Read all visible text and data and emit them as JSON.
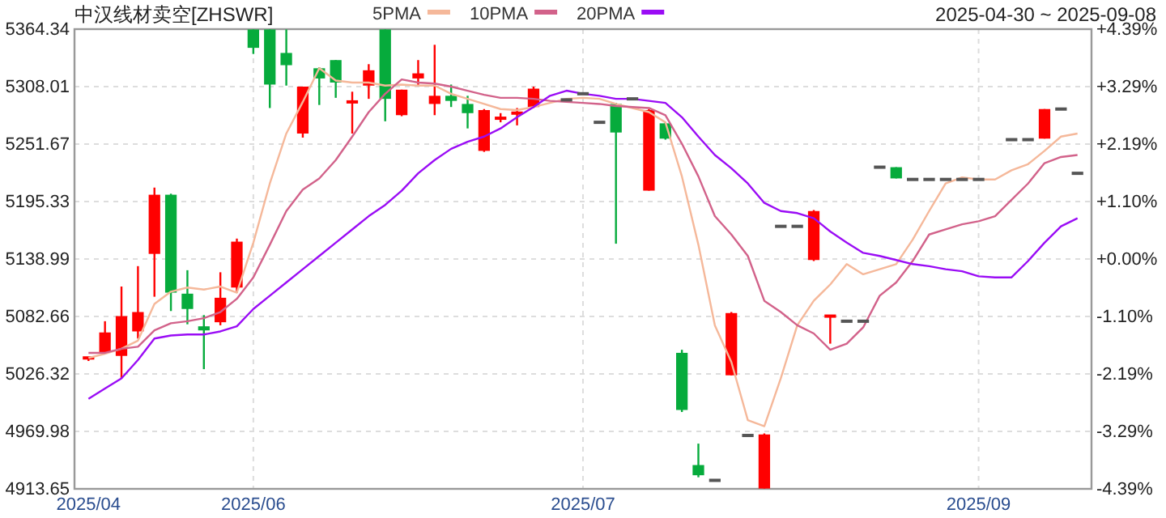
{
  "chart_data": {
    "type": "candlestick",
    "title": "中汉线材卖空[ZHSWR]",
    "subtitle": "2025-04-30 ~ 2025-09-08",
    "categories": [
      "2025/04",
      null,
      null,
      null,
      null,
      null,
      null,
      null,
      null,
      null,
      "2025/06",
      null,
      null,
      null,
      null,
      null,
      null,
      null,
      null,
      null,
      null,
      null,
      null,
      null,
      null,
      null,
      null,
      null,
      null,
      null,
      "2025/07",
      null,
      null,
      null,
      null,
      null,
      null,
      null,
      null,
      null,
      null,
      null,
      null,
      null,
      null,
      null,
      null,
      null,
      null,
      null,
      null,
      null,
      null,
      null,
      "2025/09",
      null,
      null,
      null,
      null,
      null,
      null
    ],
    "ohlc": [
      [
        5039,
        5042,
        5039,
        5042
      ],
      [
        5047,
        5078,
        5047,
        5067
      ],
      [
        5044,
        5112,
        5022,
        5083
      ],
      [
        5068,
        5132,
        5061,
        5087
      ],
      [
        5144,
        5209,
        5102,
        5202
      ],
      [
        5202,
        5203,
        5088,
        5106
      ],
      [
        5105,
        5128,
        5075,
        5090
      ],
      [
        5073,
        5084,
        5031,
        5069
      ],
      [
        5077,
        5126,
        5074,
        5101
      ],
      [
        5111,
        5159,
        5106,
        5156
      ],
      [
        5364,
        5364,
        5340,
        5346
      ],
      [
        5364,
        5364,
        5287,
        5310
      ],
      [
        5341,
        5364,
        5309,
        5329
      ],
      [
        5262,
        5308,
        5258,
        5308
      ],
      [
        5326,
        5327,
        5290,
        5316
      ],
      [
        5334,
        5334,
        5297,
        5312
      ],
      [
        5290,
        5303,
        5262,
        5293
      ],
      [
        5309,
        5330,
        5296,
        5324
      ],
      [
        5364,
        5364,
        5274,
        5296
      ],
      [
        5280,
        5305,
        5279,
        5305
      ],
      [
        5316,
        5334,
        5309,
        5321
      ],
      [
        5291,
        5349,
        5280,
        5299
      ],
      [
        5299,
        5310,
        5288,
        5294
      ],
      [
        5291,
        5299,
        5267,
        5282
      ],
      [
        5245,
        5286,
        5244,
        5285
      ],
      [
        5274,
        5282,
        5273,
        5277
      ],
      [
        5280,
        5287,
        5270,
        5282
      ],
      [
        5288,
        5308,
        5287,
        5306
      ],
      null,
      [
        5295,
        5295,
        5295,
        5295
      ],
      [
        5301,
        5301,
        5301,
        5301
      ],
      [
        5273,
        5273,
        5273,
        5273
      ],
      [
        5291,
        5292,
        5154,
        5263
      ],
      [
        5296,
        5296,
        5296,
        5296
      ],
      [
        5206,
        5286,
        5206,
        5285
      ],
      [
        5272,
        5273,
        5256,
        5257
      ],
      [
        5047,
        5050,
        4989,
        4991
      ],
      [
        4937,
        4958,
        4925,
        4927
      ],
      [
        4922,
        4922,
        4922,
        4922
      ],
      [
        5025,
        5087,
        5025,
        5086
      ],
      [
        4966,
        4966,
        4966,
        4966
      ],
      [
        4914,
        4968,
        4914,
        4967
      ],
      [
        5171,
        5171,
        5171,
        5171
      ],
      [
        5171,
        5171,
        5171,
        5171
      ],
      [
        5138,
        5187,
        5137,
        5186
      ],
      [
        5082,
        5083,
        5056,
        5083
      ],
      [
        5078,
        5078,
        5078,
        5078
      ],
      [
        5078,
        5078,
        5078,
        5078
      ],
      [
        5229,
        5229,
        5229,
        5229
      ],
      [
        5229,
        5229,
        5218,
        5218
      ],
      [
        5217,
        5217,
        5217,
        5217
      ],
      [
        5217,
        5217,
        5217,
        5217
      ],
      [
        5217,
        5217,
        5217,
        5217
      ],
      [
        5217,
        5217,
        5217,
        5217
      ],
      [
        5217,
        5217,
        5217,
        5217
      ],
      null,
      [
        5256,
        5256,
        5256,
        5256
      ],
      [
        5256,
        5256,
        5256,
        5256
      ],
      [
        5257,
        5286,
        5257,
        5286
      ],
      [
        5286,
        5286,
        5286,
        5286
      ],
      [
        5223,
        5223,
        5223,
        5223
      ]
    ],
    "series": [
      {
        "type": "line",
        "name": "5PMA",
        "color": "#f5b89a",
        "values": [
          5042,
          5046,
          5051,
          5059,
          5095,
          5107,
          5111,
          5109,
          5112,
          5106,
          5155,
          5213,
          5262,
          5293,
          5326,
          5314,
          5312,
          5312,
          5309,
          5310,
          5309,
          5309,
          5301,
          5296,
          5291,
          5286,
          5285,
          5288,
          5292,
          5296,
          5297,
          5296,
          5291,
          5287,
          5283,
          5273,
          5220,
          5153,
          5074,
          5038,
          4981,
          4975,
          5022,
          5074,
          5098,
          5114,
          5134,
          5124,
          5129,
          5134,
          5158,
          5186,
          5213,
          5219,
          5217,
          5217,
          5226,
          5232,
          5245,
          5259,
          5262
        ]
      },
      {
        "type": "line",
        "name": "10PMA",
        "color": "#d2628a",
        "values": [
          5047,
          5047,
          5051,
          5053,
          5069,
          5076,
          5078,
          5081,
          5087,
          5100,
          5121,
          5153,
          5186,
          5207,
          5218,
          5236,
          5259,
          5283,
          5301,
          5315,
          5312,
          5311,
          5308,
          5304,
          5300,
          5297,
          5297,
          5296,
          5294,
          5293,
          5292,
          5291,
          5289,
          5288,
          5287,
          5280,
          5252,
          5220,
          5181,
          5163,
          5142,
          5098,
          5087,
          5074,
          5066,
          5050,
          5056,
          5072,
          5103,
          5116,
          5137,
          5163,
          5168,
          5173,
          5176,
          5181,
          5197,
          5213,
          5233,
          5239,
          5241
        ]
      },
      {
        "type": "line",
        "name": "20PMA",
        "color": "#9a0cf5",
        "values": [
          5002,
          5012,
          5022,
          5040,
          5061,
          5064,
          5065,
          5065,
          5068,
          5073,
          5090,
          5103,
          5116,
          5129,
          5142,
          5155,
          5168,
          5181,
          5192,
          5206,
          5223,
          5236,
          5247,
          5254,
          5259,
          5267,
          5278,
          5288,
          5299,
          5304,
          5301,
          5299,
          5296,
          5296,
          5294,
          5292,
          5278,
          5259,
          5241,
          5228,
          5213,
          5194,
          5186,
          5184,
          5179,
          5166,
          5155,
          5145,
          5142,
          5138,
          5134,
          5132,
          5129,
          5127,
          5122,
          5121,
          5121,
          5137,
          5155,
          5171,
          5179
        ]
      }
    ],
    "ylim": [
      4913.65,
      5364.34
    ],
    "yticks": [
      5364.34,
      5308.01,
      5251.67,
      5195.33,
      5138.99,
      5082.66,
      5026.32,
      4969.98,
      4913.65
    ],
    "y2lim": [
      -4.39,
      4.39
    ],
    "y2ticks": [
      {
        "value": 4.39,
        "label": "+4.39%"
      },
      {
        "value": 3.29,
        "label": "+3.29%"
      },
      {
        "value": 2.19,
        "label": "+2.19%"
      },
      {
        "value": 1.1,
        "label": "+1.10%"
      },
      {
        "value": 0,
        "label": "+0.00%"
      },
      {
        "value": -1.1,
        "label": "-1.10%"
      },
      {
        "value": -2.19,
        "label": "-2.19%"
      },
      {
        "value": -3.29,
        "label": "-3.29%"
      },
      {
        "value": -4.39,
        "label": "-4.39%"
      }
    ],
    "grid": true,
    "legend": "top"
  }
}
